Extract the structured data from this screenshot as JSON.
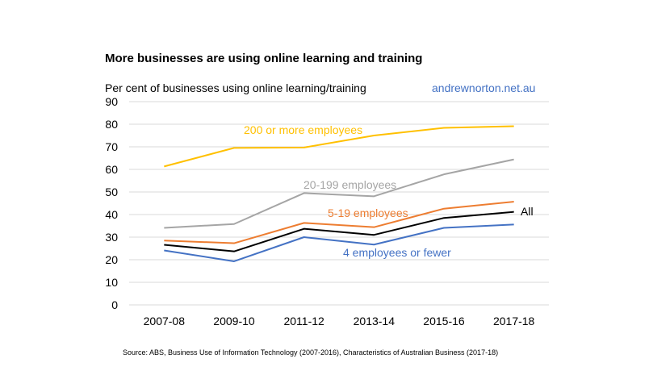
{
  "chart_data": {
    "type": "line",
    "title": "More businesses are using online learning and training",
    "ylabel": "Per cent of businesses using online learning/training",
    "annotation": "andrewnorton.net.au",
    "source": "Source: ABS, Business Use of Information  Technology (2007-2016), Characteristics of Australian Business (2017-18)",
    "categories": [
      "2007-08",
      "2009-10",
      "2011-12",
      "2013-14",
      "2015-16",
      "2017-18"
    ],
    "ylim": [
      0,
      90
    ],
    "yticks": [
      0,
      10,
      20,
      30,
      40,
      50,
      60,
      70,
      80,
      90
    ],
    "grid": true,
    "legend": "inline labels",
    "series": [
      {
        "name": "200 or more employees",
        "color": "#ffc000",
        "values": [
          61.3,
          69.5,
          69.7,
          75.0,
          78.4,
          79.1
        ]
      },
      {
        "name": "20-199 employees",
        "color": "#a5a5a5",
        "values": [
          34.1,
          35.8,
          49.5,
          48.1,
          57.8,
          64.4
        ]
      },
      {
        "name": "5-19 employees",
        "color": "#ed7d31",
        "values": [
          28.5,
          27.3,
          36.3,
          34.4,
          42.6,
          45.7
        ]
      },
      {
        "name": "All",
        "color": "#000000",
        "values": [
          26.6,
          23.7,
          33.7,
          31.0,
          38.5,
          41.2
        ]
      },
      {
        "name": "4 employees or fewer",
        "color": "#4472c4",
        "values": [
          24.1,
          19.3,
          30.0,
          26.7,
          34.1,
          35.6
        ]
      }
    ]
  }
}
